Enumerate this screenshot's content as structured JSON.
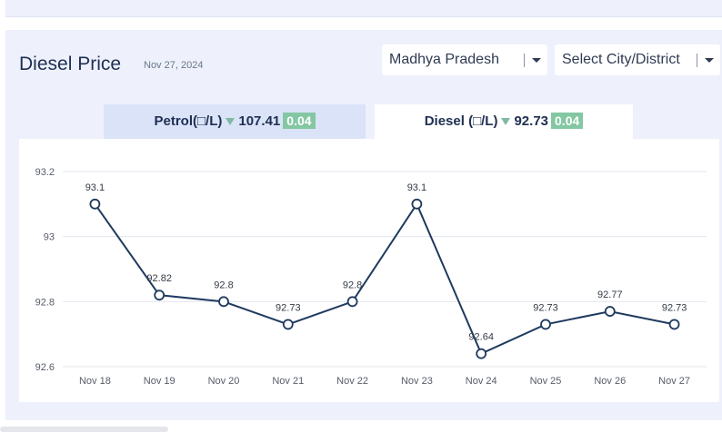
{
  "header": {
    "title": "Diesel Price",
    "date": "Nov 27, 2024"
  },
  "selects": {
    "state": "Madhya Pradesh",
    "city": "Select City/District"
  },
  "tabs": [
    {
      "label": "Petrol(□/L)",
      "price": "107.41",
      "change": "0.04"
    },
    {
      "label": "Diesel (□/L)",
      "price": "92.73",
      "change": "0.04"
    }
  ],
  "colors": {
    "line": "#1e3a5f",
    "grid": "#e3e6ee",
    "badge": "#84c7a3",
    "down_arrow": "#7fb8a4"
  },
  "chart_data": {
    "type": "line",
    "categories": [
      "Nov 18",
      "Nov 19",
      "Nov 20",
      "Nov 21",
      "Nov 22",
      "Nov 23",
      "Nov 24",
      "Nov 25",
      "Nov 26",
      "Nov 27"
    ],
    "values": [
      93.1,
      92.82,
      92.8,
      92.73,
      92.8,
      93.1,
      92.64,
      92.73,
      92.77,
      92.73
    ],
    "data_labels": [
      "93.1",
      "92.82",
      "92.8",
      "92.73",
      "92.8",
      "93.1",
      "92.64",
      "92.73",
      "92.77",
      "92.73"
    ],
    "y_ticks": [
      92.6,
      92.8,
      93,
      93.2
    ],
    "y_tick_labels": [
      "92.6",
      "92.8",
      "93",
      "93.2"
    ],
    "ylim": [
      92.6,
      93.2
    ],
    "grid": true,
    "legend": "none"
  }
}
